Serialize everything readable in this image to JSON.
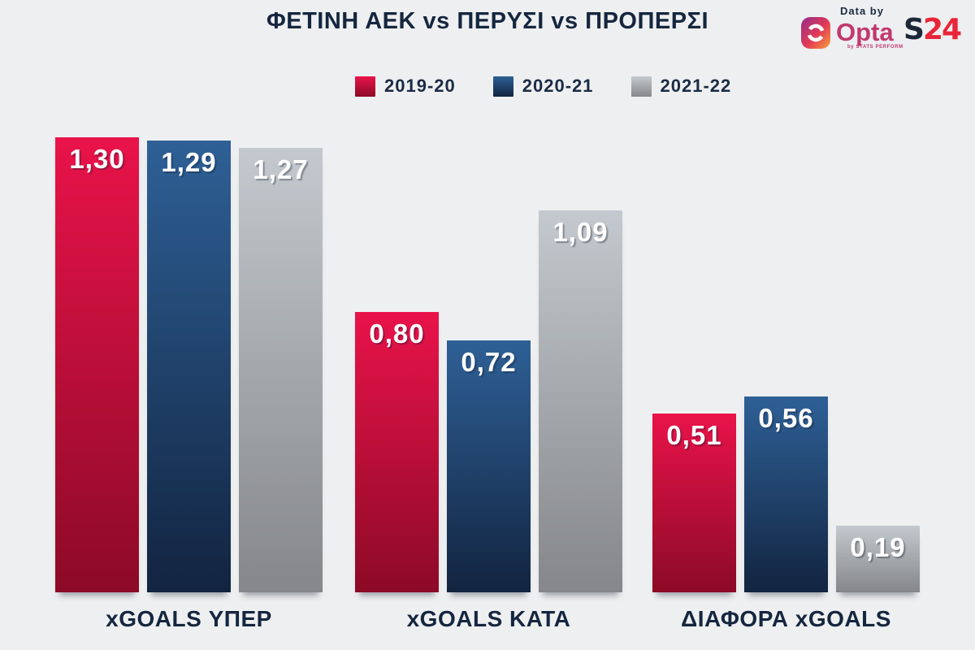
{
  "title": "ΦΕΤΙΝΗ ΑΕΚ vs ΠΕΡΥΣΙ vs ΠΡΟΠΕΡΣΙ",
  "header": {
    "data_by_label": "Data by",
    "opta_label": "Opta",
    "opta_sublabel": "by STATS PERFORM",
    "s24_s": "S",
    "s24_24": "24"
  },
  "legend": {
    "items": [
      {
        "label": "2019-20",
        "color_top": "#e9134a",
        "color_bottom": "#8c0a26"
      },
      {
        "label": "2020-21",
        "color_top": "#2e6096",
        "color_bottom": "#122440"
      },
      {
        "label": "2021-22",
        "color_top": "#c3c9ce",
        "color_bottom": "#85878a"
      }
    ]
  },
  "chart_data": {
    "type": "bar",
    "title": "ΦΕΤΙΝΗ ΑΕΚ vs ΠΕΡΥΣΙ vs ΠΡΟΠΕΡΣΙ",
    "categories": [
      "xGOALS ΥΠΕΡ",
      "xGOALS ΚΑΤΑ",
      "ΔΙΑΦΟΡΑ xGOALS"
    ],
    "series": [
      {
        "name": "2019-20",
        "values": [
          1.3,
          0.8,
          0.51
        ],
        "value_labels": [
          "1,30",
          "0,80",
          "0,51"
        ]
      },
      {
        "name": "2020-21",
        "values": [
          1.29,
          0.72,
          0.56
        ],
        "value_labels": [
          "1,29",
          "0,72",
          "0,56"
        ]
      },
      {
        "name": "2021-22",
        "values": [
          1.27,
          1.09,
          0.19
        ],
        "value_labels": [
          "1,27",
          "1,09",
          "0,19"
        ]
      }
    ],
    "ylim": [
      0,
      1.3
    ],
    "grid": false,
    "axes_shown": false,
    "legend_position": "top-center",
    "value_label_position": "inside-top",
    "decimal_separator": ","
  },
  "colors": {
    "background": "#eeeff0",
    "title_text": "#15263f",
    "bar_value_text": "#ffffff",
    "opta_magenta": "#c2396d",
    "s24_navy": "#1c2638",
    "s24_red": "#e92539"
  }
}
